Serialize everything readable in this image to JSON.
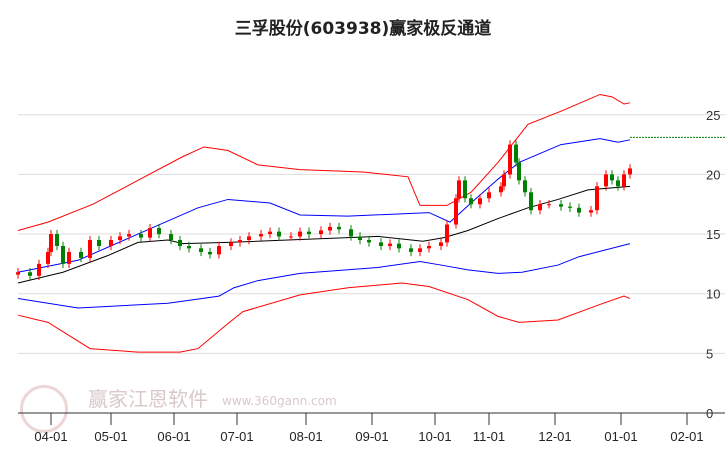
{
  "chart_data": {
    "type": "candlestick-with-bands",
    "title": "三孚股份(603938)赢家极反通道",
    "xlabel": "",
    "ylabel": "",
    "ylim": [
      0,
      27
    ],
    "y_ticks": [
      0,
      5,
      10,
      15,
      20,
      25
    ],
    "x_unit": "trading-day index",
    "xlim": [
      0,
      236
    ],
    "x_ticks": [
      {
        "day": 11,
        "label": "04-01"
      },
      {
        "day": 31,
        "label": "05-01"
      },
      {
        "day": 52,
        "label": "06-01"
      },
      {
        "day": 73,
        "label": "07-01"
      },
      {
        "day": 96,
        "label": "08-01"
      },
      {
        "day": 118,
        "label": "09-01"
      },
      {
        "day": 139,
        "label": "10-01"
      },
      {
        "day": 157,
        "label": "11-01"
      },
      {
        "day": 179,
        "label": "12-01"
      },
      {
        "day": 201,
        "label": "01-01"
      },
      {
        "day": 223,
        "label": "02-01"
      }
    ],
    "grid": true,
    "colors": {
      "up": "#ff0000",
      "down": "#008000",
      "mid": "#000000",
      "inner": "#0000ff",
      "outer": "#ff0000",
      "ref": "#008000",
      "grid": "#dddddd"
    },
    "candles_day_close": [
      [
        0,
        11.8
      ],
      [
        4,
        11.5
      ],
      [
        7,
        12.5
      ],
      [
        10,
        13.5
      ],
      [
        11,
        15.0
      ],
      [
        13,
        14.0
      ],
      [
        15,
        12.5
      ],
      [
        17,
        13.5
      ],
      [
        21,
        13.0
      ],
      [
        24,
        14.5
      ],
      [
        27,
        14.0
      ],
      [
        31,
        14.5
      ],
      [
        34,
        14.8
      ],
      [
        37,
        15.0
      ],
      [
        41,
        14.7
      ],
      [
        44,
        15.5
      ],
      [
        47,
        15.0
      ],
      [
        51,
        14.5
      ],
      [
        54,
        14.0
      ],
      [
        57,
        13.8
      ],
      [
        61,
        13.5
      ],
      [
        64,
        13.3
      ],
      [
        67,
        14.0
      ],
      [
        71,
        14.3
      ],
      [
        74,
        14.5
      ],
      [
        77,
        14.8
      ],
      [
        81,
        15.0
      ],
      [
        84,
        15.2
      ],
      [
        87,
        14.8
      ],
      [
        91,
        14.8
      ],
      [
        94,
        15.2
      ],
      [
        97,
        15.0
      ],
      [
        101,
        15.3
      ],
      [
        104,
        15.6
      ],
      [
        107,
        15.4
      ],
      [
        111,
        14.8
      ],
      [
        114,
        14.5
      ],
      [
        117,
        14.3
      ],
      [
        121,
        14.0
      ],
      [
        124,
        14.2
      ],
      [
        127,
        13.8
      ],
      [
        131,
        13.5
      ],
      [
        134,
        13.8
      ],
      [
        137,
        14.0
      ],
      [
        141,
        14.3
      ],
      [
        143,
        15.8
      ],
      [
        146,
        18.0
      ],
      [
        147,
        19.5
      ],
      [
        149,
        18.0
      ],
      [
        151,
        17.5
      ],
      [
        154,
        18.0
      ],
      [
        157,
        18.5
      ],
      [
        161,
        19.0
      ],
      [
        162,
        20.0
      ],
      [
        164,
        22.5
      ],
      [
        166,
        21.0
      ],
      [
        167,
        19.5
      ],
      [
        169,
        18.5
      ],
      [
        171,
        17.0
      ],
      [
        174,
        17.5
      ],
      [
        177,
        17.5
      ],
      [
        181,
        17.3
      ],
      [
        184,
        17.2
      ],
      [
        187,
        16.8
      ],
      [
        191,
        17.0
      ],
      [
        193,
        19.0
      ],
      [
        196,
        20.0
      ],
      [
        198,
        19.5
      ],
      [
        200,
        19.0
      ],
      [
        202,
        20.0
      ],
      [
        204,
        20.5
      ]
    ],
    "series": [
      {
        "name": "mid",
        "points": [
          [
            0,
            10.9
          ],
          [
            15,
            11.8
          ],
          [
            30,
            13.2
          ],
          [
            40,
            14.3
          ],
          [
            50,
            14.5
          ],
          [
            55,
            14.2
          ],
          [
            70,
            14.3
          ],
          [
            90,
            14.5
          ],
          [
            110,
            14.7
          ],
          [
            120,
            14.8
          ],
          [
            135,
            14.4
          ],
          [
            142,
            14.7
          ],
          [
            150,
            15.3
          ],
          [
            160,
            16.3
          ],
          [
            170,
            17.2
          ],
          [
            180,
            17.9
          ],
          [
            190,
            18.7
          ],
          [
            204,
            19.0
          ]
        ]
      },
      {
        "name": "upper-inner",
        "points": [
          [
            0,
            11.8
          ],
          [
            20,
            12.8
          ],
          [
            40,
            15.0
          ],
          [
            60,
            17.2
          ],
          [
            70,
            17.9
          ],
          [
            84,
            17.6
          ],
          [
            94,
            16.6
          ],
          [
            110,
            16.5
          ],
          [
            137,
            16.8
          ],
          [
            144,
            16.0
          ],
          [
            151,
            17.6
          ],
          [
            160,
            19.6
          ],
          [
            167,
            21.0
          ],
          [
            181,
            22.5
          ],
          [
            194,
            23.0
          ],
          [
            200,
            22.7
          ],
          [
            204,
            22.9
          ]
        ]
      },
      {
        "name": "upper-outer",
        "points": [
          [
            0,
            15.3
          ],
          [
            10,
            16.0
          ],
          [
            25,
            17.5
          ],
          [
            40,
            19.5
          ],
          [
            55,
            21.5
          ],
          [
            62,
            22.3
          ],
          [
            70,
            22.0
          ],
          [
            80,
            20.8
          ],
          [
            94,
            20.4
          ],
          [
            115,
            20.2
          ],
          [
            130,
            19.8
          ],
          [
            134,
            17.4
          ],
          [
            143,
            17.4
          ],
          [
            151,
            18.5
          ],
          [
            160,
            21.0
          ],
          [
            170,
            24.2
          ],
          [
            181,
            25.3
          ],
          [
            194,
            26.7
          ],
          [
            198,
            26.5
          ],
          [
            202,
            25.9
          ],
          [
            204,
            26.0
          ]
        ]
      },
      {
        "name": "lower-inner",
        "points": [
          [
            0,
            9.6
          ],
          [
            20,
            8.8
          ],
          [
            50,
            9.2
          ],
          [
            67,
            9.8
          ],
          [
            72,
            10.5
          ],
          [
            80,
            11.1
          ],
          [
            94,
            11.7
          ],
          [
            120,
            12.2
          ],
          [
            134,
            12.7
          ],
          [
            141,
            12.4
          ],
          [
            150,
            12.0
          ],
          [
            160,
            11.7
          ],
          [
            168,
            11.8
          ],
          [
            180,
            12.4
          ],
          [
            187,
            13.1
          ],
          [
            204,
            14.2
          ]
        ]
      },
      {
        "name": "lower-outer",
        "points": [
          [
            0,
            8.2
          ],
          [
            10,
            7.6
          ],
          [
            24,
            5.4
          ],
          [
            40,
            5.1
          ],
          [
            54,
            5.1
          ],
          [
            60,
            5.4
          ],
          [
            70,
            7.5
          ],
          [
            75,
            8.5
          ],
          [
            94,
            9.9
          ],
          [
            110,
            10.5
          ],
          [
            128,
            10.9
          ],
          [
            137,
            10.6
          ],
          [
            150,
            9.5
          ],
          [
            160,
            8.1
          ],
          [
            167,
            7.6
          ],
          [
            180,
            7.8
          ],
          [
            194,
            9.1
          ],
          [
            202,
            9.8
          ],
          [
            204,
            9.6
          ]
        ]
      }
    ],
    "reference_line": {
      "value": 23.1,
      "from_day": 204,
      "to_day": 236
    }
  },
  "watermark": {
    "logo_chars": "江赢恩家",
    "brand": "赢家江恩软件",
    "url": "www.360gann.com"
  }
}
